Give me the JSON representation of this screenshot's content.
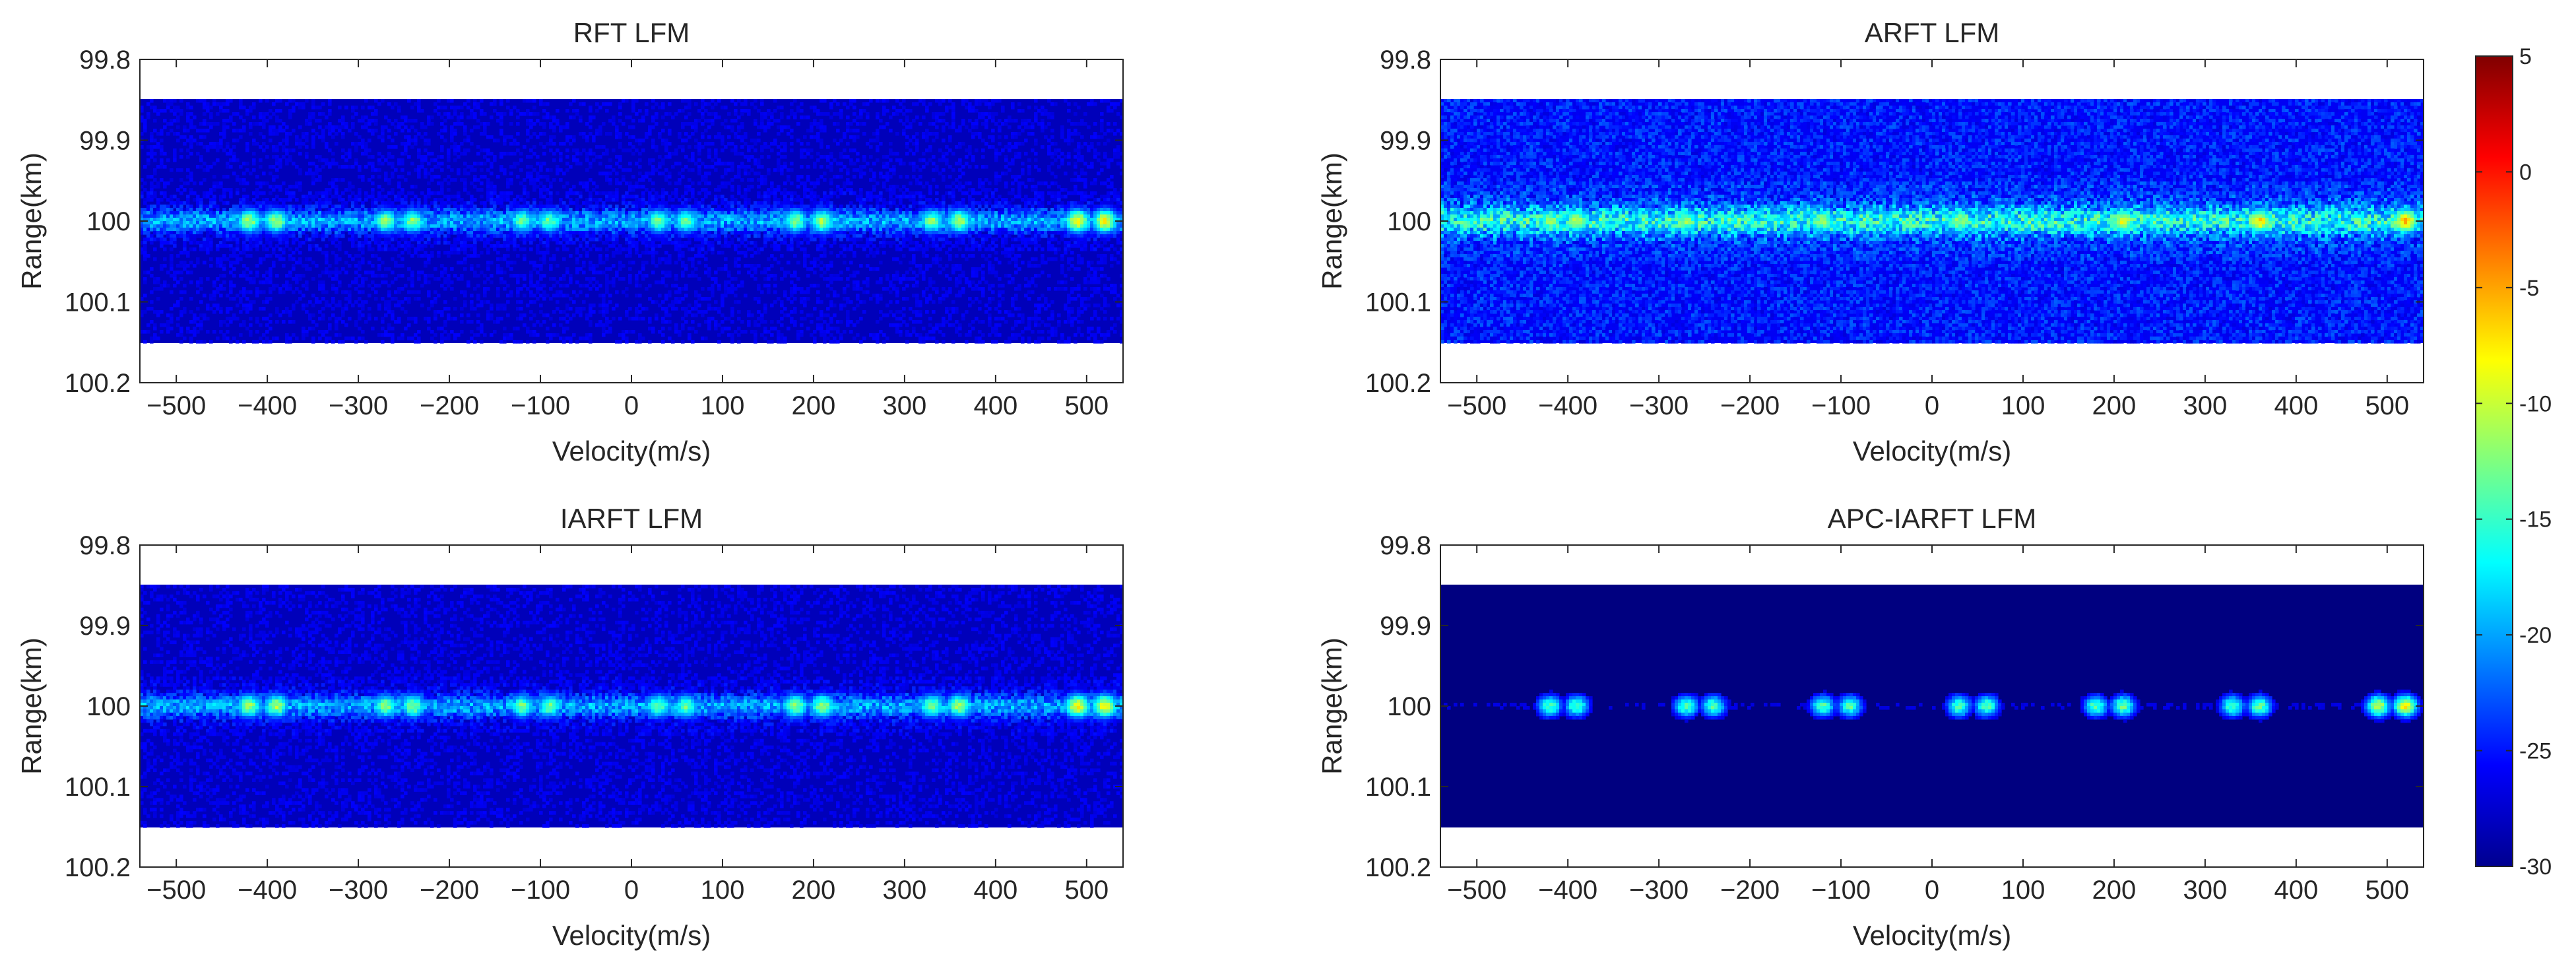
{
  "colorbar": {
    "ticks": [
      "5",
      "0",
      "-5",
      "-10",
      "-15",
      "-20",
      "-25",
      "-30"
    ],
    "range": [
      -30,
      5
    ],
    "colormap": "jet"
  },
  "chart_data": [
    {
      "type": "heatmap",
      "title": "RFT LFM",
      "xlabel": "Velocity(m/s)",
      "ylabel": "Range(km)",
      "xlim": [
        -540,
        540
      ],
      "ylim": [
        99.8,
        100.2
      ],
      "y_reversed": true,
      "xticks": [
        "-500",
        "-400",
        "-300",
        "-200",
        "-100",
        "0",
        "100",
        "200",
        "300",
        "400",
        "500"
      ],
      "yticks": [
        "99.8",
        "99.9",
        "100",
        "100.1",
        "100.2"
      ],
      "data_extent_range_km": [
        99.85,
        100.15
      ],
      "background_db": -28,
      "noise_spread_db": 4,
      "ridge": {
        "range_km": 100.0,
        "half_width_km": 0.015,
        "level_db": -20
      },
      "peaks": [
        {
          "velocity": -420,
          "range_km": 100.0,
          "level_db": -11
        },
        {
          "velocity": -390,
          "range_km": 100.0,
          "level_db": -11
        },
        {
          "velocity": -270,
          "range_km": 100.0,
          "level_db": -12
        },
        {
          "velocity": -240,
          "range_km": 100.0,
          "level_db": -12
        },
        {
          "velocity": -120,
          "range_km": 100.0,
          "level_db": -13
        },
        {
          "velocity": -90,
          "range_km": 100.0,
          "level_db": -13
        },
        {
          "velocity": 30,
          "range_km": 100.0,
          "level_db": -13
        },
        {
          "velocity": 60,
          "range_km": 100.0,
          "level_db": -13
        },
        {
          "velocity": 180,
          "range_km": 100.0,
          "level_db": -12
        },
        {
          "velocity": 210,
          "range_km": 100.0,
          "level_db": -11
        },
        {
          "velocity": 330,
          "range_km": 100.0,
          "level_db": -12
        },
        {
          "velocity": 360,
          "range_km": 100.0,
          "level_db": -11
        },
        {
          "velocity": 490,
          "range_km": 100.0,
          "level_db": -8
        },
        {
          "velocity": 520,
          "range_km": 100.0,
          "level_db": -8
        }
      ]
    },
    {
      "type": "heatmap",
      "title": "ARFT LFM",
      "xlabel": "Velocity(m/s)",
      "ylabel": "Range(km)",
      "xlim": [
        -540,
        540
      ],
      "ylim": [
        99.8,
        100.2
      ],
      "y_reversed": true,
      "xticks": [
        "-500",
        "-400",
        "-300",
        "-200",
        "-100",
        "0",
        "100",
        "200",
        "300",
        "400",
        "500"
      ],
      "yticks": [
        "99.8",
        "99.9",
        "100",
        "100.1",
        "100.2"
      ],
      "data_extent_range_km": [
        99.85,
        100.15
      ],
      "background_db": -26,
      "noise_spread_db": 6,
      "ridge": {
        "range_km": 100.0,
        "half_width_km": 0.02,
        "level_db": -16
      },
      "peaks": [
        {
          "velocity": -420,
          "range_km": 100.0,
          "level_db": -12
        },
        {
          "velocity": -390,
          "range_km": 100.0,
          "level_db": -11
        },
        {
          "velocity": -270,
          "range_km": 100.0,
          "level_db": -12
        },
        {
          "velocity": -120,
          "range_km": 100.0,
          "level_db": -12
        },
        {
          "velocity": 30,
          "range_km": 100.0,
          "level_db": -12
        },
        {
          "velocity": 210,
          "range_km": 100.0,
          "level_db": -9
        },
        {
          "velocity": 360,
          "range_km": 100.0,
          "level_db": -7
        },
        {
          "velocity": 520,
          "range_km": 100.0,
          "level_db": -6
        }
      ]
    },
    {
      "type": "heatmap",
      "title": "IARFT LFM",
      "xlabel": "Velocity(m/s)",
      "ylabel": "Range(km)",
      "xlim": [
        -540,
        540
      ],
      "ylim": [
        99.8,
        100.2
      ],
      "y_reversed": true,
      "xticks": [
        "-500",
        "-400",
        "-300",
        "-200",
        "-100",
        "0",
        "100",
        "200",
        "300",
        "400",
        "500"
      ],
      "yticks": [
        "99.8",
        "99.9",
        "100",
        "100.1",
        "100.2"
      ],
      "data_extent_range_km": [
        99.85,
        100.15
      ],
      "background_db": -28,
      "noise_spread_db": 4,
      "ridge": {
        "range_km": 100.0,
        "half_width_km": 0.015,
        "level_db": -20
      },
      "peaks": [
        {
          "velocity": -420,
          "range_km": 100.0,
          "level_db": -11
        },
        {
          "velocity": -390,
          "range_km": 100.0,
          "level_db": -11
        },
        {
          "velocity": -270,
          "range_km": 100.0,
          "level_db": -12
        },
        {
          "velocity": -240,
          "range_km": 100.0,
          "level_db": -12
        },
        {
          "velocity": -120,
          "range_km": 100.0,
          "level_db": -13
        },
        {
          "velocity": -90,
          "range_km": 100.0,
          "level_db": -13
        },
        {
          "velocity": 30,
          "range_km": 100.0,
          "level_db": -13
        },
        {
          "velocity": 60,
          "range_km": 100.0,
          "level_db": -13
        },
        {
          "velocity": 180,
          "range_km": 100.0,
          "level_db": -12
        },
        {
          "velocity": 210,
          "range_km": 100.0,
          "level_db": -11
        },
        {
          "velocity": 330,
          "range_km": 100.0,
          "level_db": -12
        },
        {
          "velocity": 360,
          "range_km": 100.0,
          "level_db": -11
        },
        {
          "velocity": 490,
          "range_km": 100.0,
          "level_db": -8
        },
        {
          "velocity": 520,
          "range_km": 100.0,
          "level_db": -8
        }
      ]
    },
    {
      "type": "heatmap",
      "title": "APC-IARFT LFM",
      "xlabel": "Velocity(m/s)",
      "ylabel": "Range(km)",
      "xlim": [
        -540,
        540
      ],
      "ylim": [
        99.8,
        100.2
      ],
      "y_reversed": true,
      "xticks": [
        "-500",
        "-400",
        "-300",
        "-200",
        "-100",
        "0",
        "100",
        "200",
        "300",
        "400",
        "500"
      ],
      "yticks": [
        "99.8",
        "99.9",
        "100",
        "100.1",
        "100.2"
      ],
      "data_extent_range_km": [
        99.85,
        100.15
      ],
      "background_db": -30,
      "noise_spread_db": 1,
      "ridge": {
        "range_km": 100.0,
        "half_width_km": 0.008,
        "level_db": -27
      },
      "peaks": [
        {
          "velocity": -420,
          "range_km": 100.0,
          "level_db": -14
        },
        {
          "velocity": -390,
          "range_km": 100.0,
          "level_db": -14
        },
        {
          "velocity": -270,
          "range_km": 100.0,
          "level_db": -14
        },
        {
          "velocity": -240,
          "range_km": 100.0,
          "level_db": -14
        },
        {
          "velocity": -120,
          "range_km": 100.0,
          "level_db": -14
        },
        {
          "velocity": -90,
          "range_km": 100.0,
          "level_db": -14
        },
        {
          "velocity": 30,
          "range_km": 100.0,
          "level_db": -14
        },
        {
          "velocity": 60,
          "range_km": 100.0,
          "level_db": -14
        },
        {
          "velocity": 180,
          "range_km": 100.0,
          "level_db": -14
        },
        {
          "velocity": 210,
          "range_km": 100.0,
          "level_db": -13
        },
        {
          "velocity": 330,
          "range_km": 100.0,
          "level_db": -14
        },
        {
          "velocity": 360,
          "range_km": 100.0,
          "level_db": -13
        },
        {
          "velocity": 490,
          "range_km": 100.0,
          "level_db": -10
        },
        {
          "velocity": 520,
          "range_km": 100.0,
          "level_db": -8
        }
      ]
    }
  ]
}
